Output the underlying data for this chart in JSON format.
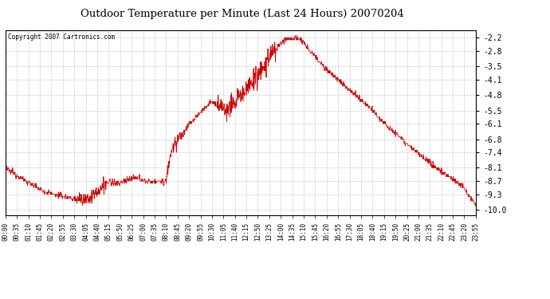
{
  "title": "Outdoor Temperature per Minute (Last 24 Hours) 20070204",
  "copyright": "Copyright 2007 Cartronics.com",
  "line_color": "#cc0000",
  "bg_color": "#ffffff",
  "plot_bg_color": "#ffffff",
  "grid_color": "#bbbbbb",
  "yticks": [
    -2.2,
    -2.8,
    -3.5,
    -4.1,
    -4.8,
    -5.5,
    -6.1,
    -6.8,
    -7.4,
    -8.1,
    -8.7,
    -9.3,
    -10.0
  ],
  "ylim": [
    -10.25,
    -1.85
  ],
  "xtick_labels": [
    "00:00",
    "00:35",
    "01:10",
    "01:45",
    "02:20",
    "02:55",
    "03:30",
    "04:05",
    "04:40",
    "05:15",
    "05:50",
    "06:25",
    "07:00",
    "07:35",
    "08:10",
    "08:45",
    "09:20",
    "09:55",
    "10:30",
    "11:05",
    "11:40",
    "12:15",
    "12:50",
    "13:25",
    "14:00",
    "14:35",
    "15:10",
    "15:45",
    "16:20",
    "16:55",
    "17:30",
    "18:05",
    "18:40",
    "19:15",
    "19:50",
    "20:25",
    "21:00",
    "21:35",
    "22:10",
    "22:45",
    "23:20",
    "23:55"
  ]
}
